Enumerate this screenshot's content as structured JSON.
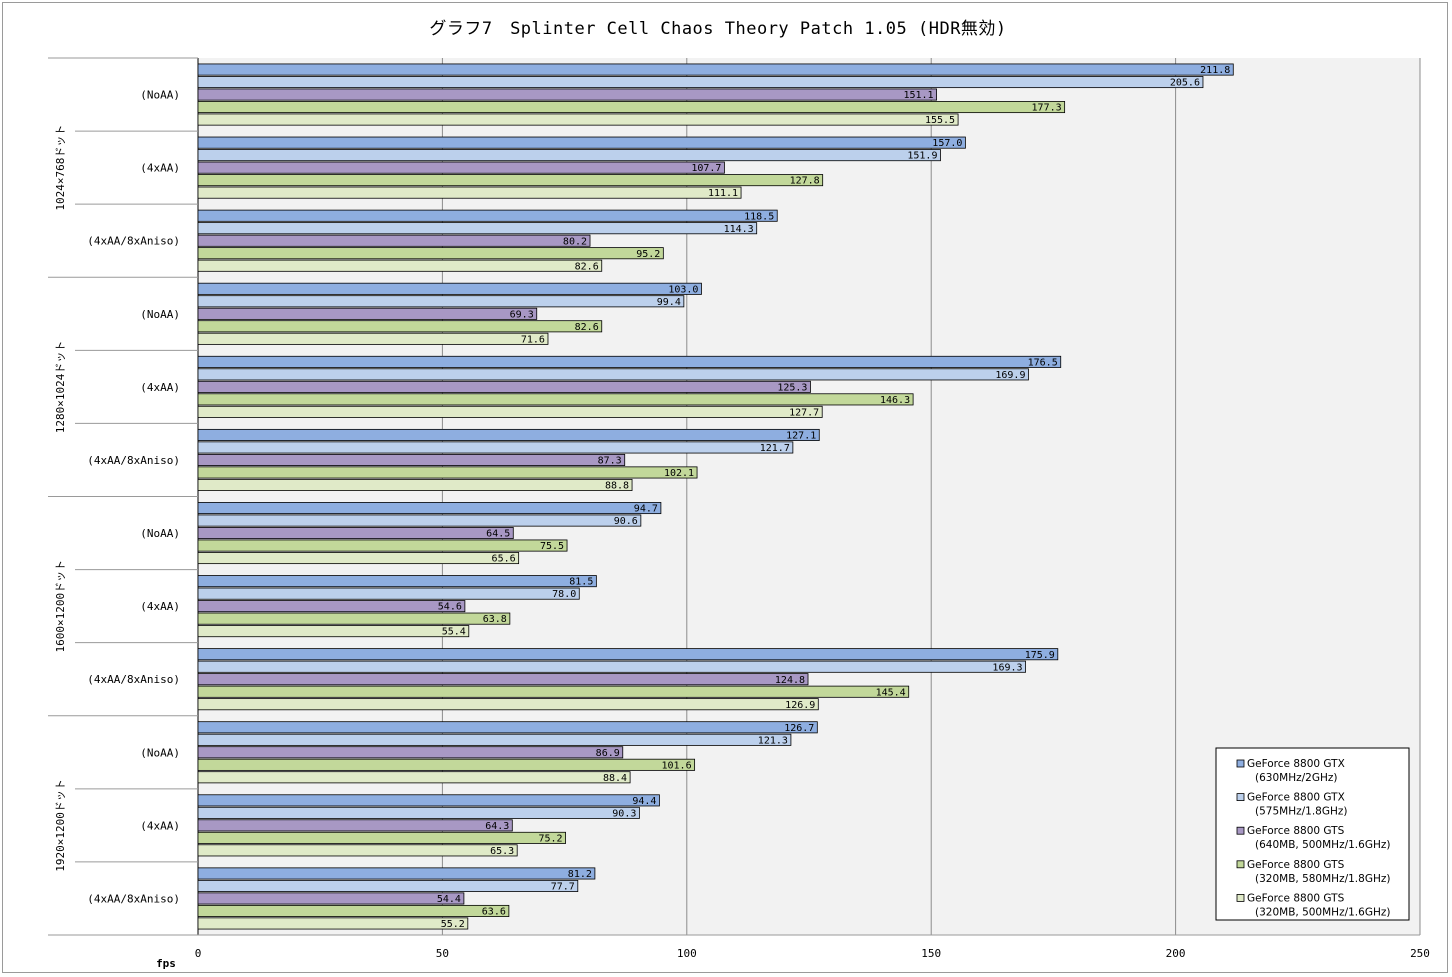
{
  "chart_data": {
    "type": "bar",
    "orientation": "horizontal",
    "title": "グラフ7　Splinter Cell Chaos Theory Patch 1.05 (HDR無効)",
    "xlabel": "fps",
    "xlim": [
      0,
      250
    ],
    "xticks": [
      0,
      50,
      100,
      150,
      200,
      250
    ],
    "grid": true,
    "legend_position": "bottom-right",
    "groups": [
      {
        "label": "1024×768ドット",
        "categories": [
          "(NoAA)",
          "(4xAA)",
          "(4xAA/8xAniso)"
        ]
      },
      {
        "label": "1280×1024ドット",
        "categories": [
          "(NoAA)",
          "(4xAA)",
          "(4xAA/8xAniso)"
        ]
      },
      {
        "label": "1600×1200ドット",
        "categories": [
          "(NoAA)",
          "(4xAA)",
          "(4xAA/8xAniso)"
        ]
      },
      {
        "label": "1920×1200ドット",
        "categories": [
          "(NoAA)",
          "(4xAA)",
          "(4xAA/8xAniso)"
        ]
      }
    ],
    "series": [
      {
        "name": "GeForce 8800 GTX",
        "name_line2": "(630MHz/2GHz)",
        "color": "#8eaee0",
        "values": [
          211.8,
          157.0,
          118.5,
          103.0,
          176.5,
          127.1,
          94.7,
          81.5,
          175.9,
          126.7,
          94.4,
          81.2
        ]
      },
      {
        "name": "GeForce 8800 GTX",
        "name_line2": "(575MHz/1.8GHz)",
        "color": "#bcd0ec",
        "values": [
          205.6,
          151.9,
          114.3,
          99.4,
          169.9,
          121.7,
          90.6,
          78.0,
          169.3,
          121.3,
          90.3,
          77.7
        ]
      },
      {
        "name": "GeForce 8800 GTS",
        "name_line2": "(640MB, 500MHz/1.6GHz)",
        "color": "#a898c4",
        "values": [
          151.1,
          107.7,
          80.2,
          69.3,
          125.3,
          87.3,
          64.5,
          54.6,
          124.8,
          86.9,
          64.3,
          54.4
        ]
      },
      {
        "name": "GeForce 8800 GTS",
        "name_line2": "(320MB, 580MHz/1.8GHz)",
        "color": "#c2d89a",
        "values": [
          177.3,
          127.8,
          95.2,
          82.6,
          146.3,
          102.1,
          75.5,
          63.8,
          145.4,
          101.6,
          75.2,
          63.6
        ]
      },
      {
        "name": "GeForce 8800 GTS",
        "name_line2": "(320MB, 500MHz/1.6GHz)",
        "color": "#e0eac8",
        "values": [
          155.5,
          111.1,
          82.6,
          71.6,
          127.7,
          88.8,
          65.6,
          55.4,
          126.9,
          88.4,
          65.3,
          55.2
        ]
      }
    ]
  }
}
